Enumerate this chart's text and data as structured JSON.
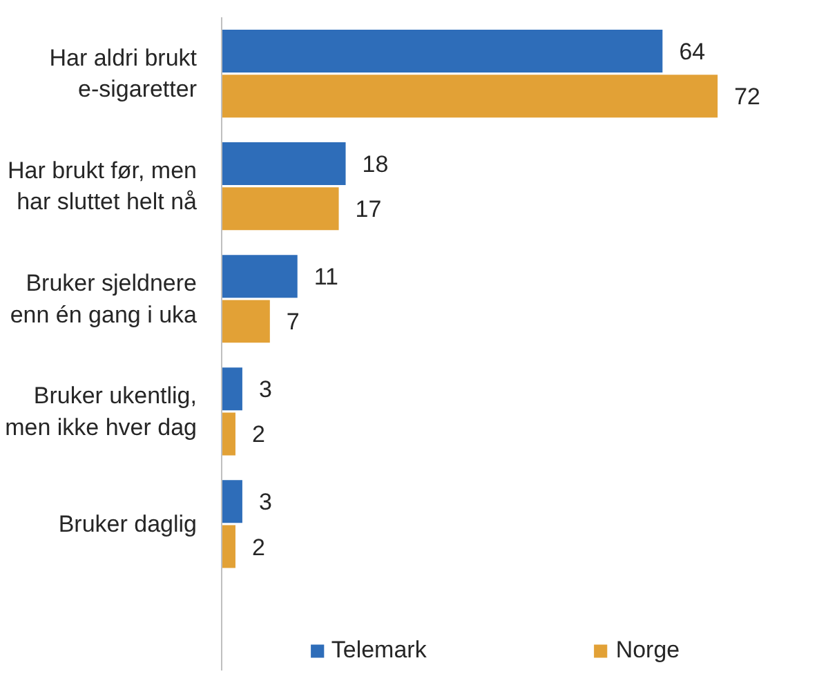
{
  "chart_data": {
    "type": "bar",
    "orientation": "horizontal",
    "categories": [
      "Har aldri brukt e-sigaretter",
      "Har brukt før, men har sluttet helt nå",
      "Bruker sjeldnere enn én gang i uka",
      "Bruker ukentlig, men ikke hver dag",
      "Bruker daglig"
    ],
    "series": [
      {
        "name": "Telemark",
        "color": "#2e6db9",
        "values": [
          64,
          18,
          11,
          3,
          3
        ]
      },
      {
        "name": "Norge",
        "color": "#e2a136",
        "values": [
          72,
          17,
          7,
          2,
          2
        ]
      }
    ],
    "tick_labels": "y",
    "data_labels": true,
    "grid": false,
    "legend": "bottom"
  }
}
